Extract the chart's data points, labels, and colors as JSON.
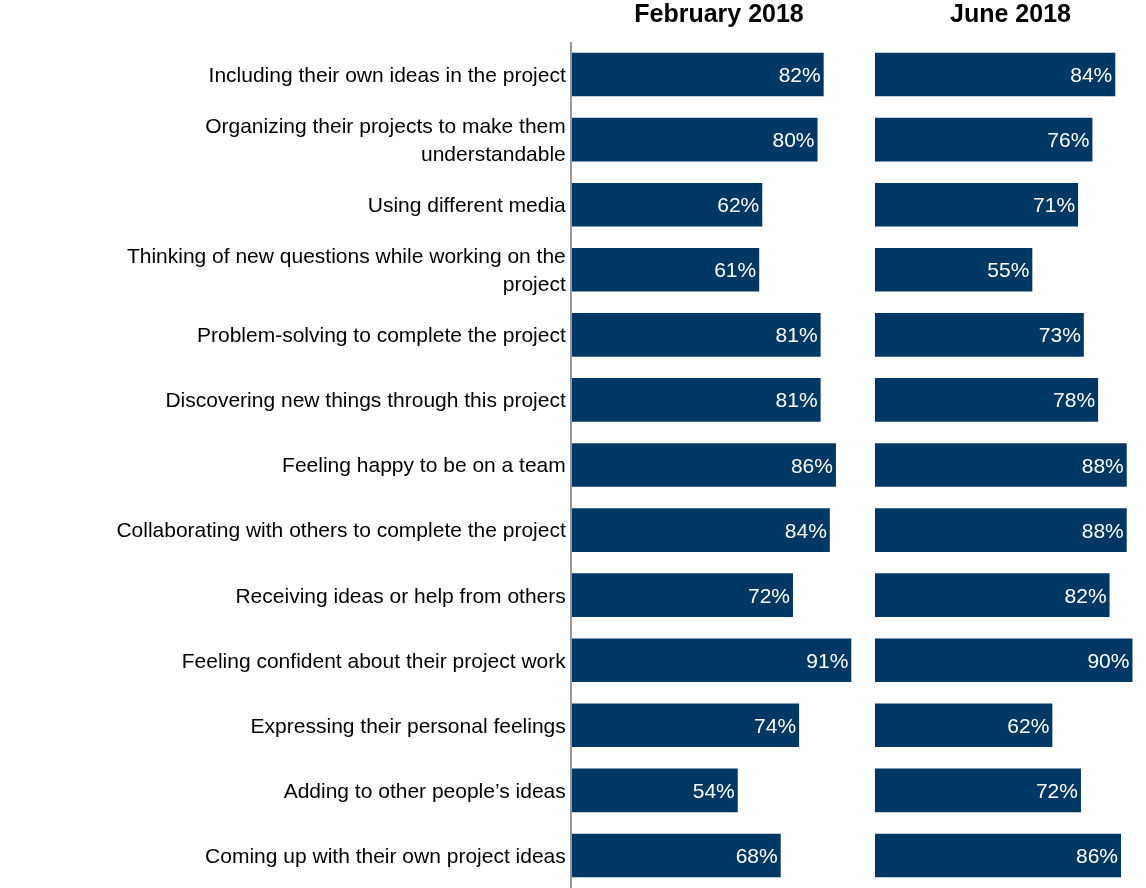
{
  "chart_data": [
    {
      "type": "bar",
      "orientation": "horizontal",
      "title": "February 2018",
      "color": "#003865",
      "categories": [
        "Including their own ideas in the project",
        "Organizing their projects to make them understandable",
        "Using different media",
        "Thinking of new questions while working on the project",
        "Problem-solving to complete the project",
        "Discovering new things through this project",
        "Feeling happy to be on a team",
        "Collaborating with others to complete the project",
        "Receiving ideas or help from others",
        "Feeling confident about their project work",
        "Expressing their personal feelings",
        "Adding to other people’s ideas",
        "Coming up with their own project ideas"
      ],
      "values": [
        82,
        80,
        62,
        61,
        81,
        81,
        86,
        84,
        72,
        91,
        74,
        54,
        68
      ],
      "value_labels": [
        "82%",
        "80%",
        "62%",
        "61%",
        "81%",
        "81%",
        "86%",
        "84%",
        "72%",
        "91%",
        "74%",
        "54%",
        "68%"
      ],
      "tick_labels": "y"
    },
    {
      "type": "bar",
      "orientation": "horizontal",
      "title": "June 2018",
      "color": "#003865",
      "categories": [
        "Including their own ideas in the project",
        "Organizing their projects to make them understandable",
        "Using different media",
        "Thinking of new questions while working on the project",
        "Problem-solving to complete the project",
        "Discovering new things through this project",
        "Feeling happy to be on a team",
        "Collaborating with others to complete the project",
        "Receiving ideas or help from others",
        "Feeling confident about their project work",
        "Expressing their personal feelings",
        "Adding to other people’s ideas",
        "Coming up with their own project ideas"
      ],
      "values": [
        84,
        76,
        71,
        55,
        73,
        78,
        88,
        88,
        82,
        90,
        62,
        72,
        86
      ],
      "value_labels": [
        "84%",
        "76%",
        "71%",
        "55%",
        "73%",
        "78%",
        "88%",
        "88%",
        "82%",
        "90%",
        "62%",
        "72%",
        "86%"
      ],
      "tick_labels": false
    }
  ]
}
